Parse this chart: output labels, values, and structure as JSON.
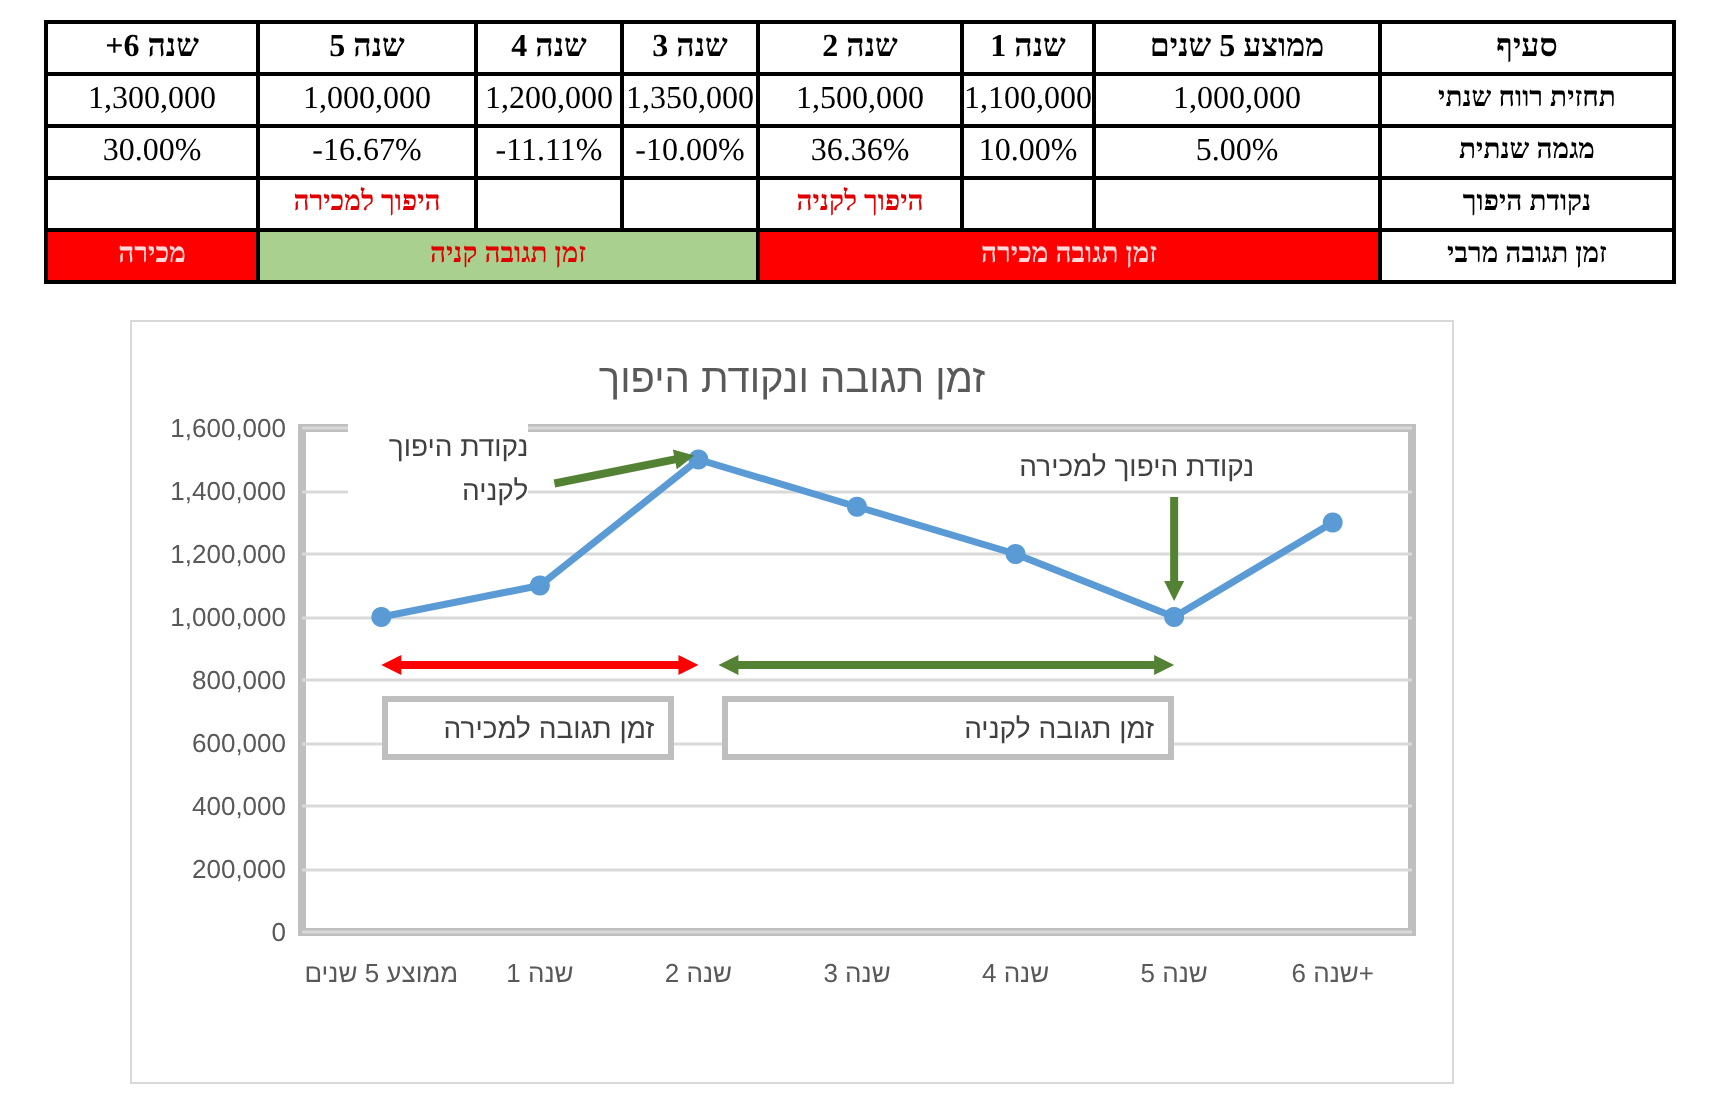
{
  "chart_data": [
    {
      "type": "other",
      "ylabel": "סעיף",
      "categories": [
        "שנה 6+",
        "שנה 5",
        "שנה 4",
        "שנה 3",
        "שנה 2",
        "שנה 1",
        "ממוצע 5 שנים"
      ],
      "y_categories": [
        "תחזית רווח שנתי",
        "מגמה שנתית",
        "נקודת היפוך",
        "זמן תגובה מרבי"
      ],
      "cell_labels": [
        [
          "1,300,000",
          "1,000,000",
          "1,200,000",
          "1,350,000",
          "1,500,000",
          "1,100,000",
          "1,000,000"
        ],
        [
          "30.00%",
          "-16.67%",
          "-11.11%",
          "-10.00%",
          "36.36%",
          "10.00%",
          "5.00%"
        ],
        [
          null,
          "היפוך למכירה",
          null,
          null,
          "היפוך לקניה",
          null,
          null
        ],
        [
          "מכירה",
          "זמן תגובה קניה",
          null,
          null,
          "זמן תגובה מכירה",
          null,
          null
        ]
      ],
      "colors": [
        [
          null,
          null,
          null,
          null,
          null,
          null,
          null
        ],
        [
          null,
          null,
          null,
          null,
          null,
          null,
          null
        ],
        [
          null,
          null,
          null,
          null,
          null,
          null,
          null
        ],
        [
          "#ff0000",
          "#a9d08e",
          "#a9d08e",
          "#a9d08e",
          "#ff0000",
          "#ff0000",
          "#ff0000"
        ]
      ]
    },
    {
      "type": "line",
      "title": "זמן תגובה ונקודת היפוך",
      "categories": [
        "ממוצע 5 שנים",
        "שנה 1",
        "שנה 2",
        "שנה 3",
        "שנה 4",
        "שנה 5",
        "שנה 6+"
      ],
      "series": [
        {
          "color": "#5b9bd5",
          "values": [
            1000000,
            1100000,
            1500000,
            1350000,
            1200000,
            1000000,
            1300000
          ]
        }
      ],
      "ylim": [
        0,
        1600000
      ],
      "yticks": [
        0,
        {
          "value": 200000,
          "label": "200,000"
        },
        {
          "value": 400000,
          "label": "400,000"
        },
        {
          "value": 600000,
          "label": "600,000"
        },
        {
          "value": 800000,
          "label": "800,000"
        },
        {
          "value": 1000000,
          "label": "1,000,000"
        },
        {
          "value": 1200000,
          "label": "1,200,000"
        },
        {
          "value": 1400000,
          "label": "1,400,000"
        },
        {
          "value": 1600000,
          "label": "1,600,000"
        }
      ],
      "grid": "y",
      "marker": "circle",
      "annotations": [
        "נקודת היפוך לקניה",
        "נקודת היפוך למכירה",
        "זמן תגובה למכירה",
        "זמן תגובה לקניה"
      ]
    }
  ]
}
